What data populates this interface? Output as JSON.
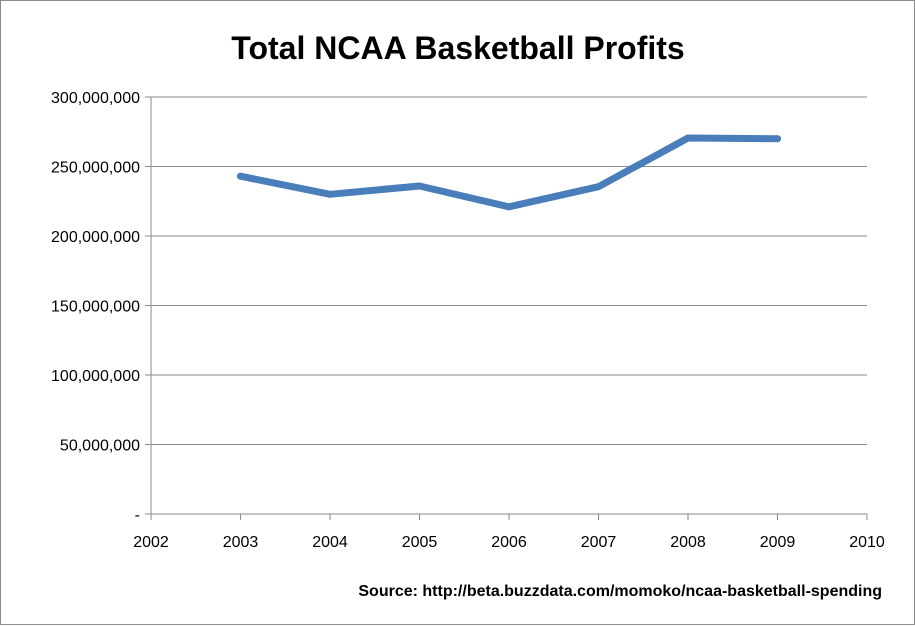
{
  "chart_data": {
    "type": "line",
    "title": "Total NCAA Basketball Profits",
    "xlabel": "",
    "ylabel": "",
    "x_ticks": [
      "2002",
      "2003",
      "2004",
      "2005",
      "2006",
      "2007",
      "2008",
      "2009",
      "2010"
    ],
    "y_ticks": [
      "-",
      "50,000,000",
      "100,000,000",
      "150,000,000",
      "200,000,000",
      "250,000,000",
      "300,000,000"
    ],
    "xlim": [
      2002,
      2010
    ],
    "ylim": [
      0,
      300000000
    ],
    "grid": true,
    "legend": "none",
    "series": [
      {
        "color": "#4a7ebb",
        "x": [
          2003,
          2004,
          2005,
          2006,
          2007,
          2008,
          2009
        ],
        "values": [
          243000000,
          230000000,
          236000000,
          221000000,
          235500000,
          270500000,
          270000000
        ]
      }
    ],
    "source_text": "Source: http://beta.buzzdata.com/momoko/ncaa-basketball-spending"
  }
}
